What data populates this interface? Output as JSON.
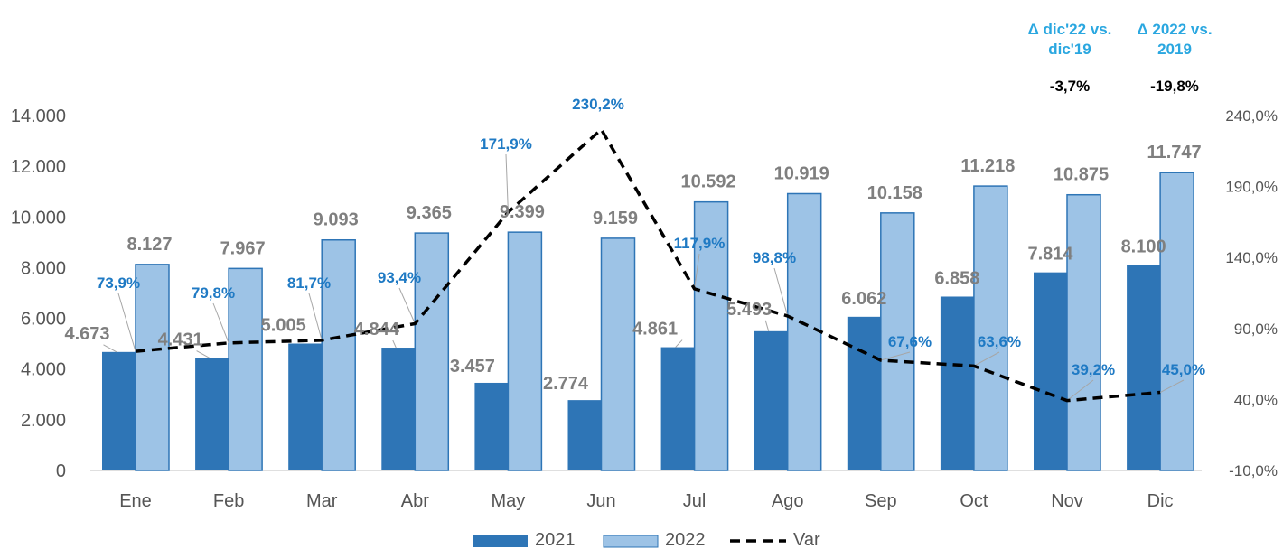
{
  "chart_data": {
    "type": "bar",
    "categories": [
      "Ene",
      "Feb",
      "Mar",
      "Abr",
      "May",
      "Jun",
      "Jul",
      "Ago",
      "Sep",
      "Oct",
      "Nov",
      "Dic"
    ],
    "series": [
      {
        "name": "2021",
        "kind": "bar",
        "color": "#2e75b6",
        "values": [
          4673,
          4431,
          5005,
          4844,
          3457,
          2774,
          4861,
          5493,
          6062,
          6858,
          7814,
          8100
        ],
        "labels": [
          "4.673",
          "4.431",
          "5.005",
          "4.844",
          "3.457",
          "2.774",
          "4.861",
          "5.493",
          "6.062",
          "6.858",
          "7.814",
          "8.100"
        ]
      },
      {
        "name": "2022",
        "kind": "bar",
        "color": "#9dc3e6",
        "values": [
          8127,
          7967,
          9093,
          9365,
          9399,
          9159,
          10592,
          10919,
          10158,
          11218,
          10875,
          11747
        ],
        "labels": [
          "8.127",
          "7.967",
          "9.093",
          "9.365",
          "9.399",
          "9.159",
          "10.592",
          "10.919",
          "10.158",
          "11.218",
          "10.875",
          "11.747"
        ]
      },
      {
        "name": "Var",
        "kind": "line",
        "axis": "right",
        "style": "dashed",
        "color": "#000000",
        "values": [
          73.9,
          79.8,
          81.7,
          93.4,
          171.9,
          230.2,
          117.9,
          98.8,
          67.6,
          63.6,
          39.2,
          45.0
        ],
        "labels": [
          "73,9%",
          "79,8%",
          "81,7%",
          "93,4%",
          "171,9%",
          "230,2%",
          "117,9%",
          "98,8%",
          "67,6%",
          "63,6%",
          "39,2%",
          "45,0%"
        ]
      }
    ],
    "y_left": {
      "min": 0,
      "max": 14000,
      "ticks": [
        0,
        2000,
        4000,
        6000,
        8000,
        10000,
        12000,
        14000
      ],
      "tick_labels": [
        "0",
        "2.000",
        "4.000",
        "6.000",
        "8.000",
        "10.000",
        "12.000",
        "14.000"
      ]
    },
    "y_right": {
      "min": -10,
      "max": 240,
      "ticks": [
        -10,
        40,
        90,
        140,
        190,
        240
      ],
      "tick_labels": [
        "-10,0%",
        "40,0%",
        "90,0%",
        "140,0%",
        "190,0%",
        "240,0%"
      ]
    },
    "grid": false,
    "legend": {
      "position": "bottom",
      "items": [
        "2021",
        "2022",
        "Var"
      ]
    },
    "summary": [
      {
        "header": [
          "Δ dic'22 vs.",
          "dic'19"
        ],
        "value": "-3,7%"
      },
      {
        "header": [
          "Δ 2022 vs.",
          "2019"
        ],
        "value": "-19,8%"
      }
    ],
    "colors": {
      "bar_2021": "#2e75b6",
      "bar_2022": "#9dc3e6",
      "bar_2022_edge": "#2e75b6",
      "line": "#000000",
      "value_label": "#7f7f7f",
      "pct_label": "#1f7ac4",
      "header": "#2aa7e0"
    }
  }
}
